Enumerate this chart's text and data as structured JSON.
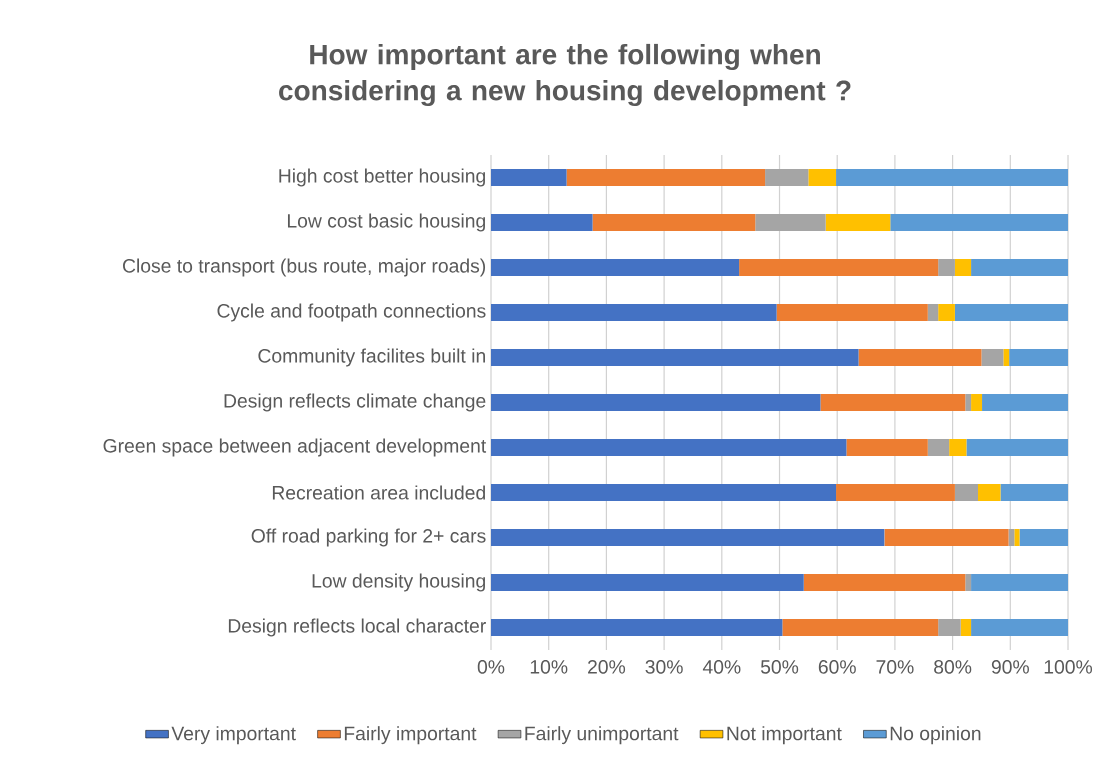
{
  "chart_data": {
    "type": "bar",
    "orientation": "horizontal",
    "stacked": true,
    "title": "How important are the following when considering a new housing development ?",
    "categories": [
      "High cost better housing",
      "Low cost basic housing",
      "Close to transport (bus route, major roads)",
      "Cycle and footpath connections",
      "Community facilites built in",
      "Design reflects climate change",
      "Green space between adjacent development",
      "Recreation area included",
      "Off road parking for 2+ cars",
      "Low density housing",
      "Design reflects local character"
    ],
    "series": [
      {
        "name": "Very important",
        "color": "#4472c4",
        "values": [
          13.1,
          17.6,
          43.0,
          49.5,
          63.7,
          57.1,
          61.6,
          59.8,
          68.2,
          54.2,
          50.5
        ]
      },
      {
        "name": "Fairly important",
        "color": "#ed7d31",
        "values": [
          34.4,
          28.2,
          34.5,
          26.2,
          21.3,
          25.1,
          14.1,
          20.6,
          21.5,
          28.0,
          27.0
        ]
      },
      {
        "name": "Fairly unimportant",
        "color": "#a5a5a5",
        "values": [
          7.5,
          12.2,
          2.9,
          1.8,
          3.8,
          1.0,
          3.7,
          4.0,
          1.0,
          1.0,
          3.9
        ]
      },
      {
        "name": "Not important",
        "color": "#ffc000",
        "values": [
          4.8,
          11.2,
          2.8,
          2.9,
          1.0,
          1.9,
          3.0,
          3.9,
          0.9,
          0,
          1.8
        ]
      },
      {
        "name": "No opinion",
        "color": "#5b9bd5",
        "values": [
          40.2,
          30.8,
          16.8,
          19.6,
          10.2,
          14.9,
          17.6,
          11.7,
          8.4,
          16.8,
          16.8
        ]
      }
    ],
    "xlim": [
      0,
      100
    ],
    "xticks": [
      {
        "value": 0,
        "label": "0%"
      },
      {
        "value": 10,
        "label": "10%"
      },
      {
        "value": 20,
        "label": "20%"
      },
      {
        "value": 30,
        "label": "30%"
      },
      {
        "value": 40,
        "label": "40%"
      },
      {
        "value": 50,
        "label": "50%"
      },
      {
        "value": 60,
        "label": "60%"
      },
      {
        "value": 70,
        "label": "70%"
      },
      {
        "value": 80,
        "label": "80%"
      },
      {
        "value": 90,
        "label": "90%"
      },
      {
        "value": 100,
        "label": "100%"
      }
    ],
    "grid": "x",
    "legend": "bottom"
  }
}
